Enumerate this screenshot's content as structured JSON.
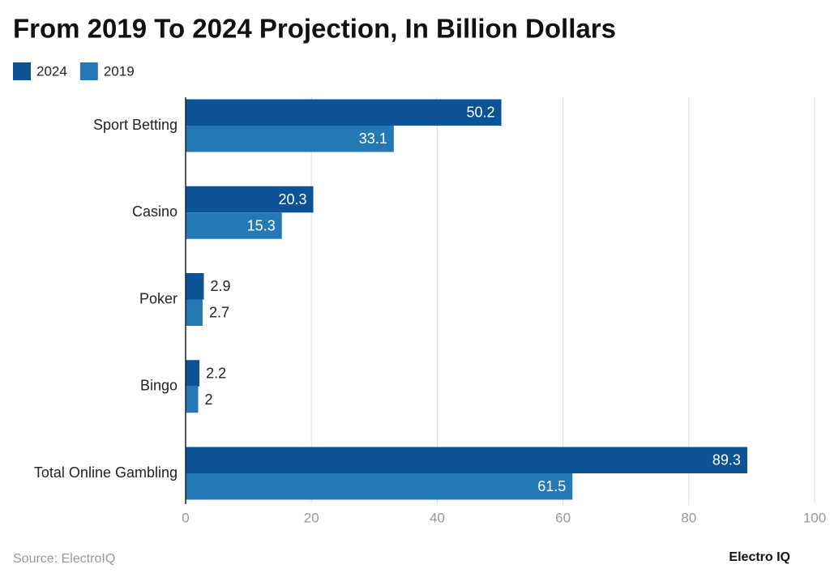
{
  "chart_data": {
    "type": "bar",
    "orientation": "horizontal",
    "title": "From 2019 To 2024 Projection, In Billion Dollars",
    "categories": [
      "Sport Betting",
      "Casino",
      "Poker",
      "Bingo",
      "Total Online Gambling"
    ],
    "series": [
      {
        "name": "2024",
        "color": "#0b5394",
        "values": [
          50.2,
          20.3,
          2.9,
          2.2,
          89.3
        ]
      },
      {
        "name": "2019",
        "color": "#2479b5",
        "values": [
          33.1,
          15.3,
          2.7,
          2,
          61.5
        ]
      }
    ],
    "xlim": [
      0,
      100
    ],
    "xticks": [
      0,
      20,
      40,
      60,
      80,
      100
    ],
    "grid": true,
    "source": "Source: ElectroIQ",
    "brand": "Electro IQ"
  }
}
